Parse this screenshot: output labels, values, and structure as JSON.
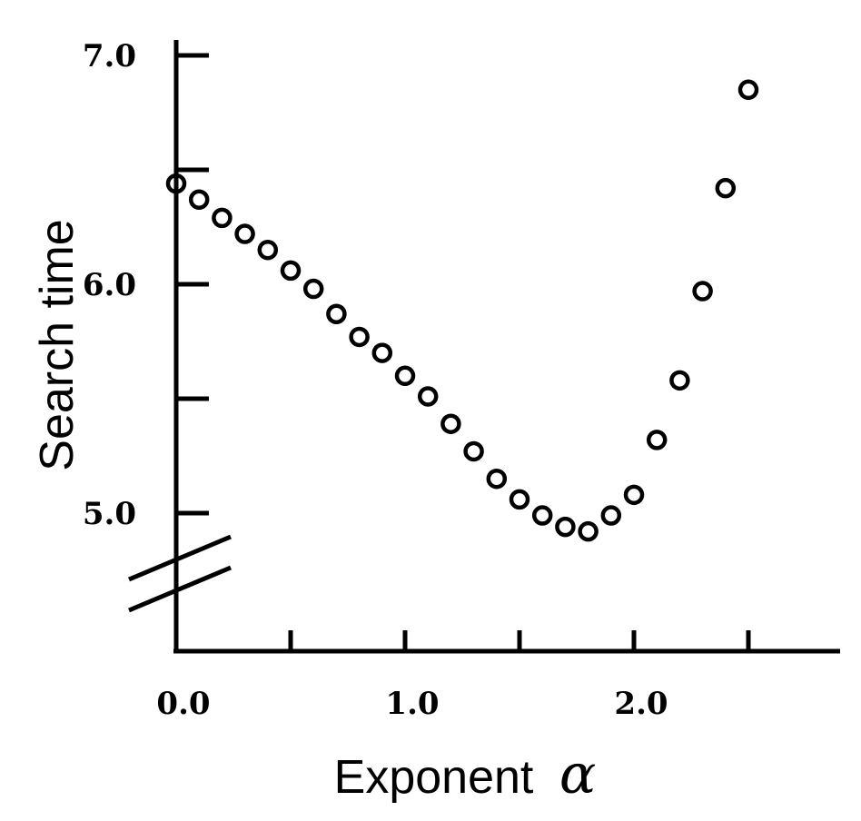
{
  "chart_data": {
    "type": "scatter",
    "xlabel": "Exponent",
    "xlabel_symbol": "α",
    "ylabel": "Search time",
    "xlim": [
      0.0,
      2.9
    ],
    "ylim": [
      4.4,
      7.0
    ],
    "x_ticks": [
      0.0,
      0.5,
      1.0,
      1.5,
      2.0,
      2.5
    ],
    "x_tick_labels": [
      "0.0",
      "1.0",
      "2.0"
    ],
    "y_ticks": [
      5.0,
      5.5,
      6.0,
      6.5,
      7.0
    ],
    "y_tick_labels": [
      "5.0",
      "6.0",
      "7.0"
    ],
    "y_axis_break": true,
    "grid": false,
    "marker": "open-circle",
    "series": [
      {
        "x": [
          0.0,
          0.1,
          0.2,
          0.3,
          0.4,
          0.5,
          0.6,
          0.7,
          0.8,
          0.9,
          1.0,
          1.1,
          1.2,
          1.3,
          1.4,
          1.5,
          1.6,
          1.7,
          1.8,
          1.9,
          2.0,
          2.1,
          2.2,
          2.3,
          2.4,
          2.5
        ],
        "y": [
          6.44,
          6.37,
          6.29,
          6.22,
          6.15,
          6.06,
          5.98,
          5.87,
          5.77,
          5.7,
          5.6,
          5.51,
          5.39,
          5.27,
          5.15,
          5.06,
          4.99,
          4.94,
          4.92,
          4.99,
          5.08,
          5.32,
          5.58,
          5.97,
          6.42,
          6.85
        ]
      }
    ]
  }
}
